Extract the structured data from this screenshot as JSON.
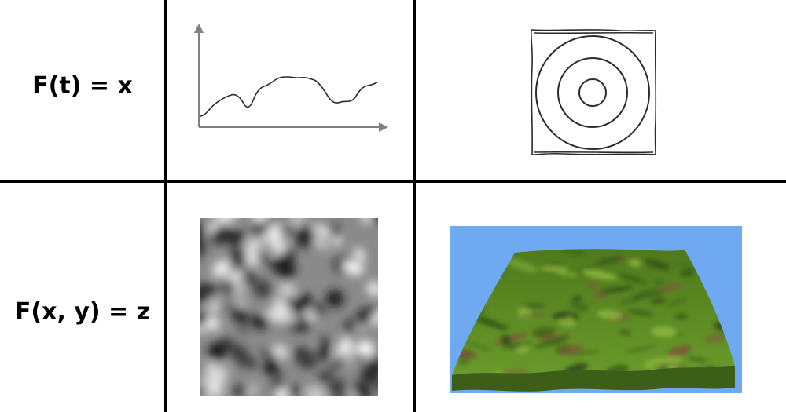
{
  "rows": [
    {
      "formula": "F(t) = x"
    },
    {
      "formula": "F(x, y) = z"
    }
  ],
  "colors": {
    "grid_line": "#000000",
    "axis": "#808080",
    "sky": "#6ea9f2",
    "terrain_green": "#5d8a26",
    "terrain_dark": "#2e4a14",
    "terrain_brown": "#7a5a3a"
  },
  "illustrations": {
    "row1_left": "line-graph-sketch",
    "row1_right": "concentric-circles-sketch",
    "row2_left": "grayscale-noise-heightmap",
    "row2_right": "3d-terrain-render"
  }
}
